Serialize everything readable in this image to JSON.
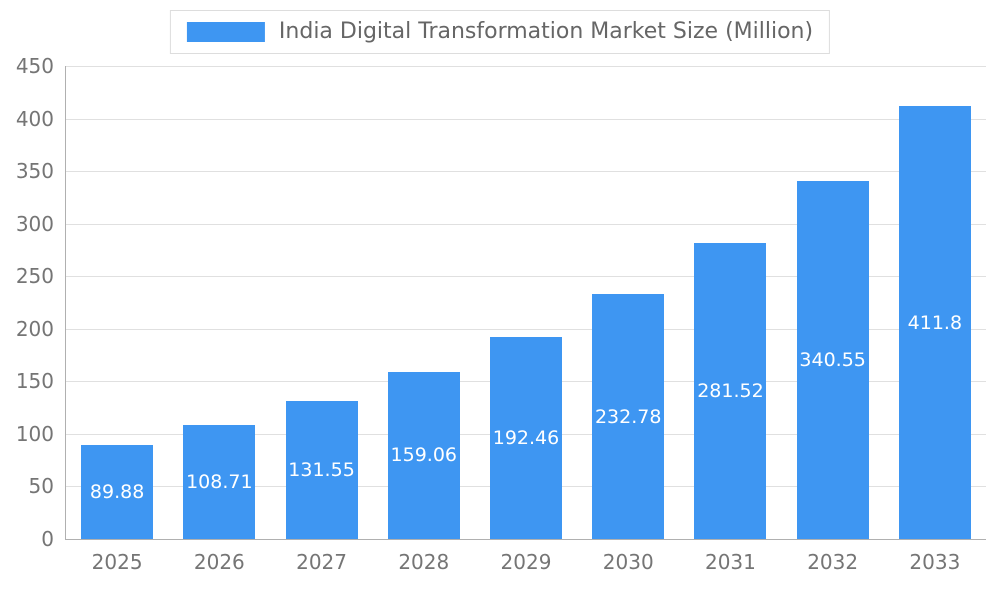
{
  "chart_data": {
    "type": "bar",
    "title": "India Digital Transformation Market Size (Million)",
    "categories": [
      "2025",
      "2026",
      "2027",
      "2028",
      "2029",
      "2030",
      "2031",
      "2032",
      "2033"
    ],
    "values": [
      89.88,
      108.71,
      131.55,
      159.06,
      192.46,
      232.78,
      281.52,
      340.55,
      411.8
    ],
    "xlabel": "",
    "ylabel": "",
    "ylim": [
      0,
      450
    ],
    "ytick_interval": 50,
    "ytick_labels": [
      "0",
      "50",
      "100",
      "150",
      "200",
      "250",
      "300",
      "350",
      "400",
      "450"
    ],
    "grid": true,
    "legend_position": "top-center",
    "value_labels_shown": true,
    "colors": {
      "bar": "#3E96F2",
      "value_label": "#ffffff",
      "axis_text": "#757575",
      "title_text": "#666666",
      "gridline": "#e0e0e0",
      "axis_line": "#b0b0b0",
      "background": "#ffffff"
    }
  }
}
